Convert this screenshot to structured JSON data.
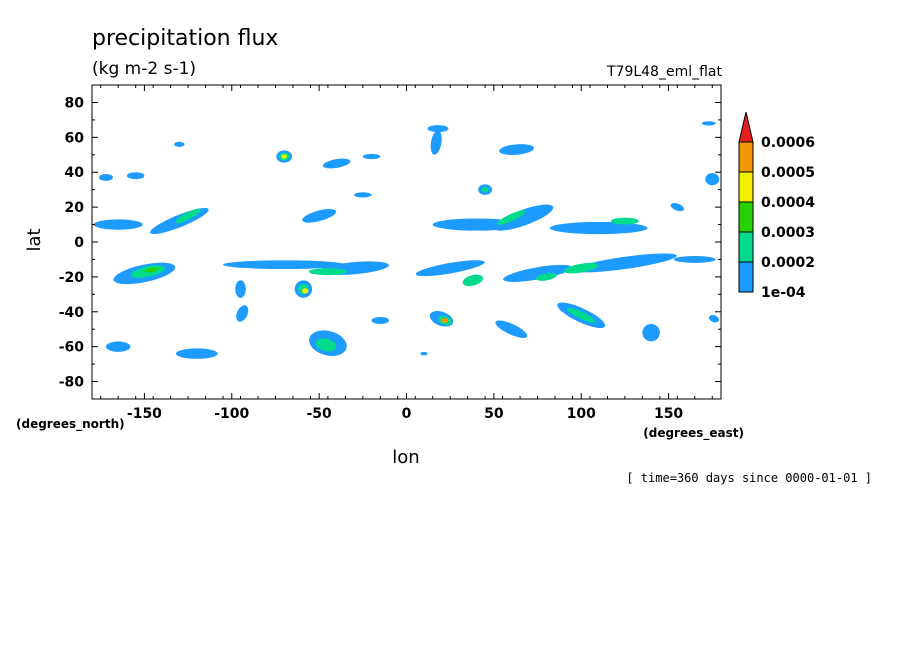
{
  "chart_data": {
    "type": "heatmap",
    "title": "precipitation flux",
    "units": "(kg m-2 s-1)",
    "run_label": "T79L48_eml_flat",
    "xlabel": "lon",
    "ylabel": "lat",
    "x_unit_label": "(degrees_east)",
    "y_unit_label": "(degrees_north)",
    "time_label": "[ time=360 days since 0000-01-01 ]",
    "xlim": [
      -180,
      180
    ],
    "ylim": [
      -90,
      90
    ],
    "x_ticks": [
      -150,
      -100,
      -50,
      0,
      50,
      100,
      150
    ],
    "x_tick_labels": [
      "-150",
      "-100",
      "-50",
      "0",
      "50",
      "100",
      "150"
    ],
    "y_ticks": [
      80,
      60,
      40,
      20,
      0,
      -20,
      -40,
      -60,
      -80
    ],
    "y_tick_labels": [
      "80",
      "60",
      "40",
      "20",
      "0",
      "-20",
      "-40",
      "-60",
      "-80"
    ],
    "colorbar": {
      "levels": [
        "1e-04",
        "0.0002",
        "0.0003",
        "0.0004",
        "0.0005",
        "0.0006"
      ],
      "colors": [
        "#1e9bff",
        "#00dc8c",
        "#28d200",
        "#f0f000",
        "#f09600",
        "#e61e1e"
      ],
      "extend": "max"
    },
    "regions": [
      {
        "lon": -165,
        "lat": 10,
        "rx": 14,
        "ry": 3,
        "level": 1,
        "rot": 0
      },
      {
        "lon": -130,
        "lat": 12,
        "rx": 18,
        "ry": 3.5,
        "level": 1,
        "rot": -22
      },
      {
        "lon": -125,
        "lat": 15,
        "rx": 8,
        "ry": 2,
        "level": 2,
        "rot": -28
      },
      {
        "lon": -172,
        "lat": 37,
        "rx": 4,
        "ry": 2,
        "level": 1,
        "rot": 0
      },
      {
        "lon": -155,
        "lat": 38,
        "rx": 5,
        "ry": 2,
        "level": 1,
        "rot": 0
      },
      {
        "lon": -130,
        "lat": 56,
        "rx": 3,
        "ry": 1.5,
        "level": 1,
        "rot": 0
      },
      {
        "lon": -70,
        "lat": 49,
        "rx": 4.5,
        "ry": 3.5,
        "level": 1,
        "rot": 0
      },
      {
        "lon": -70,
        "lat": 49,
        "rx": 3,
        "ry": 2.2,
        "level": 2,
        "rot": 0
      },
      {
        "lon": -70,
        "lat": 49,
        "rx": 1.6,
        "ry": 1.2,
        "level": 4,
        "rot": 0
      },
      {
        "lon": -40,
        "lat": 45,
        "rx": 8,
        "ry": 2.5,
        "level": 1,
        "rot": -10
      },
      {
        "lon": -20,
        "lat": 49,
        "rx": 5,
        "ry": 1.5,
        "level": 1,
        "rot": 0
      },
      {
        "lon": -50,
        "lat": 15,
        "rx": 10,
        "ry": 3,
        "level": 1,
        "rot": -15
      },
      {
        "lon": -25,
        "lat": 27,
        "rx": 5,
        "ry": 1.5,
        "level": 1,
        "rot": 0
      },
      {
        "lon": 18,
        "lat": 65,
        "rx": 6,
        "ry": 2,
        "level": 1,
        "rot": 0
      },
      {
        "lon": 17,
        "lat": 57,
        "rx": 3,
        "ry": 7,
        "level": 1,
        "rot": 10
      },
      {
        "lon": 45,
        "lat": 30,
        "rx": 4,
        "ry": 3,
        "level": 1,
        "rot": 0
      },
      {
        "lon": 45,
        "lat": 30,
        "rx": 2,
        "ry": 1.6,
        "level": 2,
        "rot": 0
      },
      {
        "lon": 63,
        "lat": 53,
        "rx": 10,
        "ry": 3,
        "level": 1,
        "rot": -5
      },
      {
        "lon": 40,
        "lat": 10,
        "rx": 25,
        "ry": 3.5,
        "level": 1,
        "rot": 0
      },
      {
        "lon": 67,
        "lat": 14,
        "rx": 18,
        "ry": 4.5,
        "level": 1,
        "rot": -20
      },
      {
        "lon": 60,
        "lat": 14,
        "rx": 9,
        "ry": 2,
        "level": 2,
        "rot": -25
      },
      {
        "lon": 110,
        "lat": 8,
        "rx": 28,
        "ry": 3.5,
        "level": 1,
        "rot": 0
      },
      {
        "lon": 125,
        "lat": 12,
        "rx": 8,
        "ry": 2,
        "level": 2,
        "rot": 0
      },
      {
        "lon": 175,
        "lat": 36,
        "rx": 4,
        "ry": 3.5,
        "level": 1,
        "rot": 0
      },
      {
        "lon": 173,
        "lat": 68,
        "rx": 4,
        "ry": 1.2,
        "level": 1,
        "rot": 0
      },
      {
        "lon": 155,
        "lat": 20,
        "rx": 4,
        "ry": 2,
        "level": 1,
        "rot": 20
      },
      {
        "lon": -150,
        "lat": -18,
        "rx": 18,
        "ry": 5,
        "level": 1,
        "rot": -12
      },
      {
        "lon": -148,
        "lat": -17,
        "rx": 10,
        "ry": 3,
        "level": 2,
        "rot": -12
      },
      {
        "lon": -146,
        "lat": -16,
        "rx": 4,
        "ry": 1.2,
        "level": 3,
        "rot": -12
      },
      {
        "lon": -70,
        "lat": -13,
        "rx": 35,
        "ry": 2.5,
        "level": 1,
        "rot": 0
      },
      {
        "lon": -30,
        "lat": -15,
        "rx": 20,
        "ry": 3.5,
        "level": 1,
        "rot": -5
      },
      {
        "lon": -45,
        "lat": -17,
        "rx": 11,
        "ry": 2,
        "level": 2,
        "rot": 0
      },
      {
        "lon": -95,
        "lat": -27,
        "rx": 3,
        "ry": 5,
        "level": 1,
        "rot": 0
      },
      {
        "lon": -59,
        "lat": -27,
        "rx": 5,
        "ry": 5,
        "level": 1,
        "rot": -20
      },
      {
        "lon": -59,
        "lat": -27,
        "rx": 3,
        "ry": 3,
        "level": 2,
        "rot": -20
      },
      {
        "lon": -58,
        "lat": -28,
        "rx": 1.8,
        "ry": 1.5,
        "level": 4,
        "rot": 0
      },
      {
        "lon": -94,
        "lat": -41,
        "rx": 3,
        "ry": 5,
        "level": 1,
        "rot": 25
      },
      {
        "lon": -45,
        "lat": -58,
        "rx": 11,
        "ry": 7,
        "level": 1,
        "rot": 15
      },
      {
        "lon": -46,
        "lat": -59,
        "rx": 6,
        "ry": 3.5,
        "level": 2,
        "rot": 15
      },
      {
        "lon": -15,
        "lat": -45,
        "rx": 5,
        "ry": 2,
        "level": 1,
        "rot": 0
      },
      {
        "lon": 10,
        "lat": -64,
        "rx": 2,
        "ry": 1,
        "level": 1,
        "rot": 0
      },
      {
        "lon": 20,
        "lat": -44,
        "rx": 7,
        "ry": 4,
        "level": 1,
        "rot": 20
      },
      {
        "lon": 22,
        "lat": -45,
        "rx": 4,
        "ry": 2.5,
        "level": 2,
        "rot": 20
      },
      {
        "lon": 22,
        "lat": -45,
        "rx": 2,
        "ry": 1.4,
        "level": 5,
        "rot": 0
      },
      {
        "lon": 25,
        "lat": -15,
        "rx": 20,
        "ry": 3,
        "level": 1,
        "rot": -10
      },
      {
        "lon": 38,
        "lat": -22,
        "rx": 6,
        "ry": 3,
        "level": 2,
        "rot": -15
      },
      {
        "lon": 75,
        "lat": -18,
        "rx": 20,
        "ry": 3.5,
        "level": 1,
        "rot": -10
      },
      {
        "lon": 80,
        "lat": -20,
        "rx": 6,
        "ry": 2,
        "level": 2,
        "rot": -10
      },
      {
        "lon": 125,
        "lat": -12,
        "rx": 30,
        "ry": 3.5,
        "level": 1,
        "rot": -8
      },
      {
        "lon": 100,
        "lat": -15,
        "rx": 10,
        "ry": 2.5,
        "level": 2,
        "rot": -10
      },
      {
        "lon": 165,
        "lat": -10,
        "rx": 12,
        "ry": 2,
        "level": 1,
        "rot": 0
      },
      {
        "lon": 60,
        "lat": -50,
        "rx": 10,
        "ry": 3,
        "level": 1,
        "rot": 25
      },
      {
        "lon": 100,
        "lat": -42,
        "rx": 15,
        "ry": 4,
        "level": 1,
        "rot": 25
      },
      {
        "lon": 100,
        "lat": -42,
        "rx": 9,
        "ry": 2,
        "level": 2,
        "rot": 25
      },
      {
        "lon": 140,
        "lat": -52,
        "rx": 5,
        "ry": 5,
        "level": 1,
        "rot": 0
      },
      {
        "lon": 176,
        "lat": -44,
        "rx": 3,
        "ry": 2,
        "level": 1,
        "rot": 20
      },
      {
        "lon": -165,
        "lat": -60,
        "rx": 7,
        "ry": 3,
        "level": 1,
        "rot": 0
      },
      {
        "lon": -120,
        "lat": -64,
        "rx": 12,
        "ry": 3,
        "level": 1,
        "rot": 0
      }
    ]
  }
}
